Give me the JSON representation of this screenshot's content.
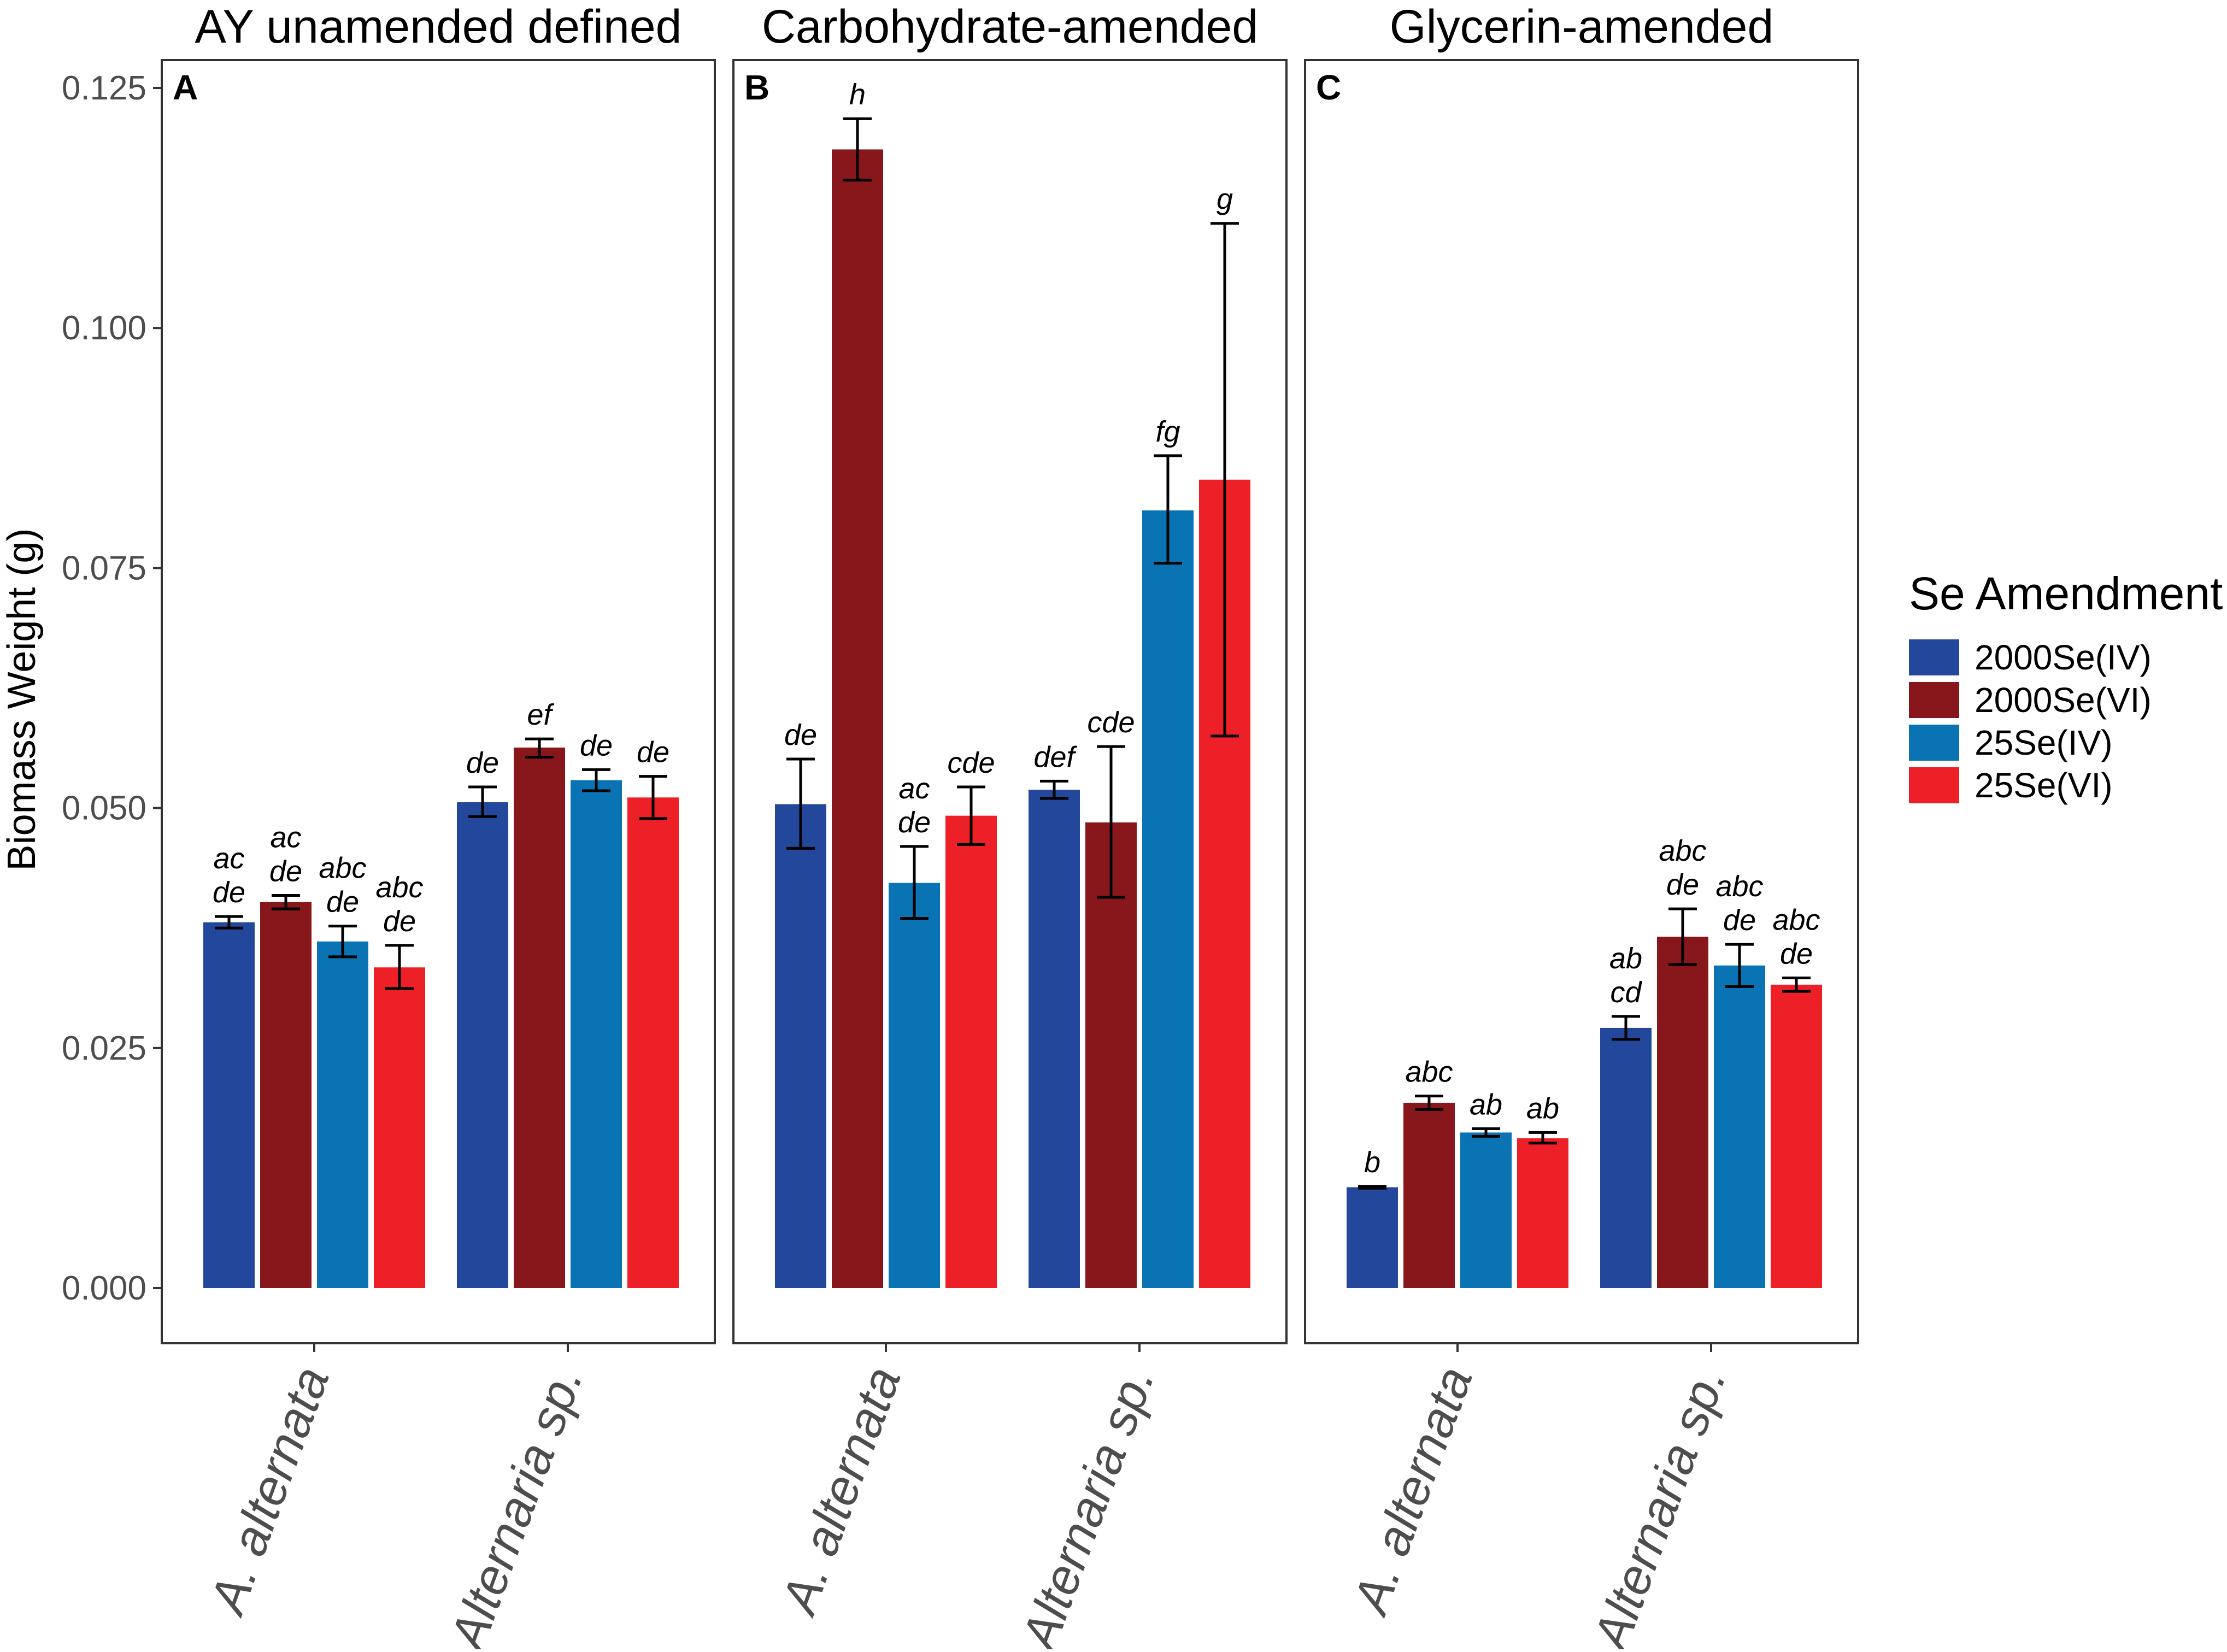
{
  "chart_data": {
    "type": "bar",
    "ylabel": "Biomass Weight (g)",
    "ylim": [
      0,
      0.125
    ],
    "yticks": [
      "0.000",
      "0.025",
      "0.050",
      "0.075",
      "0.100",
      "0.125"
    ],
    "categories": [
      "A. alternata",
      "Alternaria sp."
    ],
    "legend": {
      "title": "Se Amendment",
      "position": "right",
      "entries": [
        {
          "name": "2000Se(IV)",
          "color": "#23479a"
        },
        {
          "name": "2000Se(VI)",
          "color": "#87171b"
        },
        {
          "name": "25Se(IV)",
          "color": "#0a73b4"
        },
        {
          "name": "25Se(VI)",
          "color": "#ed1f27"
        }
      ]
    },
    "panels": [
      {
        "tag": "A",
        "title": "AY unamended defined",
        "groups": [
          {
            "category": "A. alternata",
            "bars": [
              {
                "series": "2000Se(IV)",
                "value": 0.0381,
                "err_low": 0.0375,
                "err_high": 0.0387,
                "sig": [
                  "ac",
                  "de"
                ]
              },
              {
                "series": "2000Se(VI)",
                "value": 0.0402,
                "err_low": 0.0395,
                "err_high": 0.0409,
                "sig": [
                  "ac",
                  "de"
                ]
              },
              {
                "series": "25Se(IV)",
                "value": 0.0361,
                "err_low": 0.0345,
                "err_high": 0.0377,
                "sig": [
                  "abc",
                  "de"
                ]
              },
              {
                "series": "25Se(VI)",
                "value": 0.0334,
                "err_low": 0.0312,
                "err_high": 0.0357,
                "sig": [
                  "abc",
                  "de"
                ]
              }
            ]
          },
          {
            "category": "Alternaria sp.",
            "bars": [
              {
                "series": "2000Se(IV)",
                "value": 0.0506,
                "err_low": 0.0491,
                "err_high": 0.0522,
                "sig": [
                  "de"
                ]
              },
              {
                "series": "2000Se(VI)",
                "value": 0.0563,
                "err_low": 0.0553,
                "err_high": 0.0572,
                "sig": [
                  "ef"
                ]
              },
              {
                "series": "25Se(IV)",
                "value": 0.0529,
                "err_low": 0.0518,
                "err_high": 0.054,
                "sig": [
                  "de"
                ]
              },
              {
                "series": "25Se(VI)",
                "value": 0.0511,
                "err_low": 0.0489,
                "err_high": 0.0533,
                "sig": [
                  "de"
                ]
              }
            ]
          }
        ]
      },
      {
        "tag": "B",
        "title": "Carbohydrate-amended",
        "groups": [
          {
            "category": "A. alternata",
            "bars": [
              {
                "series": "2000Se(IV)",
                "value": 0.0504,
                "err_low": 0.0458,
                "err_high": 0.0551,
                "sig": [
                  "de"
                ]
              },
              {
                "series": "2000Se(VI)",
                "value": 0.1186,
                "err_low": 0.1154,
                "err_high": 0.1218,
                "sig": [
                  "h"
                ]
              },
              {
                "series": "25Se(IV)",
                "value": 0.0422,
                "err_low": 0.0385,
                "err_high": 0.046,
                "sig": [
                  "ac",
                  "de"
                ]
              },
              {
                "series": "25Se(VI)",
                "value": 0.0492,
                "err_low": 0.0462,
                "err_high": 0.0522,
                "sig": [
                  "cde"
                ]
              }
            ]
          },
          {
            "category": "Alternaria sp.",
            "bars": [
              {
                "series": "2000Se(IV)",
                "value": 0.0519,
                "err_low": 0.051,
                "err_high": 0.0528,
                "sig": [
                  "def"
                ]
              },
              {
                "series": "2000Se(VI)",
                "value": 0.0485,
                "err_low": 0.0407,
                "err_high": 0.0564,
                "sig": [
                  "cde"
                ]
              },
              {
                "series": "25Se(IV)",
                "value": 0.081,
                "err_low": 0.0755,
                "err_high": 0.0867,
                "sig": [
                  "fg"
                ]
              },
              {
                "series": "25Se(VI)",
                "value": 0.0842,
                "err_low": 0.0575,
                "err_high": 0.1109,
                "sig": [
                  "g"
                ]
              }
            ]
          }
        ]
      },
      {
        "tag": "C",
        "title": "Glycerin-amended",
        "groups": [
          {
            "category": "A. alternata",
            "bars": [
              {
                "series": "2000Se(IV)",
                "value": 0.0105,
                "err_low": 0.0104,
                "err_high": 0.0106,
                "sig": [
                  "b"
                ]
              },
              {
                "series": "2000Se(VI)",
                "value": 0.0193,
                "err_low": 0.0186,
                "err_high": 0.02,
                "sig": [
                  "abc"
                ]
              },
              {
                "series": "25Se(IV)",
                "value": 0.0162,
                "err_low": 0.0158,
                "err_high": 0.0166,
                "sig": [
                  "ab"
                ]
              },
              {
                "series": "25Se(VI)",
                "value": 0.0156,
                "err_low": 0.0151,
                "err_high": 0.0162,
                "sig": [
                  "ab"
                ]
              }
            ]
          },
          {
            "category": "Alternaria sp.",
            "bars": [
              {
                "series": "2000Se(IV)",
                "value": 0.0271,
                "err_low": 0.0259,
                "err_high": 0.0283,
                "sig": [
                  "ab",
                  "cd"
                ]
              },
              {
                "series": "2000Se(VI)",
                "value": 0.0366,
                "err_low": 0.0337,
                "err_high": 0.0395,
                "sig": [
                  "abc",
                  "de"
                ]
              },
              {
                "series": "25Se(IV)",
                "value": 0.0336,
                "err_low": 0.0314,
                "err_high": 0.0358,
                "sig": [
                  "abc",
                  "de"
                ]
              },
              {
                "series": "25Se(VI)",
                "value": 0.0316,
                "err_low": 0.0309,
                "err_high": 0.0323,
                "sig": [
                  "abc",
                  "de"
                ]
              }
            ]
          }
        ]
      }
    ]
  }
}
